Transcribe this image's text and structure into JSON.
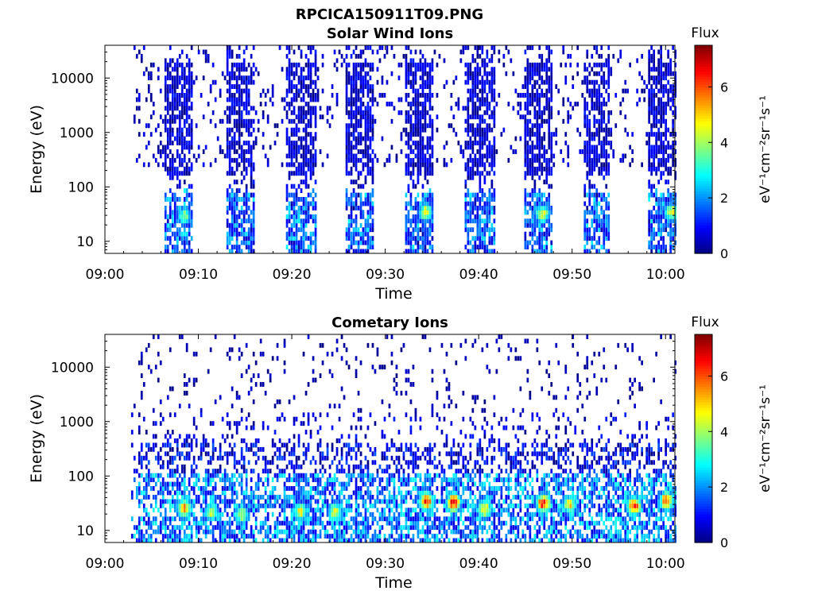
{
  "figure": {
    "title": "RPCICA150911T09.PNG"
  },
  "chart_data": [
    {
      "type": "heatmap",
      "title": "Solar Wind Ions",
      "xlabel": "Time",
      "ylabel": "Energy (eV)",
      "x_ticks": [
        "09:00",
        "09:10",
        "09:20",
        "09:30",
        "09:40",
        "09:50",
        "10:00"
      ],
      "x_range_minutes": [
        0,
        61
      ],
      "y_ticks": [
        "10",
        "100",
        "1000",
        "10000"
      ],
      "y_scale": "log",
      "y_range": [
        6,
        40000
      ],
      "colorbar": {
        "label": "Flux",
        "unit": "eV⁻¹cm⁻²sr⁻¹s⁻¹",
        "ticks": [
          "0",
          "2",
          "4",
          "6"
        ],
        "range": [
          0,
          7.5
        ]
      },
      "bursts_minutes": [
        [
          6.3,
          9.4
        ],
        [
          12.8,
          15.9
        ],
        [
          19.2,
          22.6
        ],
        [
          25.5,
          28.8
        ],
        [
          32.0,
          35.0
        ],
        [
          38.5,
          41.6
        ],
        [
          44.8,
          47.8
        ],
        [
          51.0,
          54.0
        ],
        [
          58.0,
          61.0
        ]
      ],
      "peaks": [
        {
          "t": 8.4,
          "energy": 30,
          "flux": 4.0
        },
        {
          "t": 34.2,
          "energy": 35,
          "flux": 4.8
        },
        {
          "t": 46.7,
          "energy": 32,
          "flux": 5.0
        },
        {
          "t": 60.5,
          "energy": 35,
          "flux": 4.8
        }
      ]
    },
    {
      "type": "heatmap",
      "title": "Cometary Ions",
      "xlabel": "Time",
      "ylabel": "Energy (eV)",
      "x_ticks": [
        "09:00",
        "09:10",
        "09:20",
        "09:30",
        "09:40",
        "09:50",
        "10:00"
      ],
      "x_range_minutes": [
        0,
        61
      ],
      "y_ticks": [
        "10",
        "100",
        "1000",
        "10000"
      ],
      "y_scale": "log",
      "y_range": [
        6,
        40000
      ],
      "colorbar": {
        "label": "Flux",
        "unit": "eV⁻¹cm⁻²sr⁻¹s⁻¹",
        "ticks": [
          "0",
          "2",
          "4",
          "6"
        ],
        "range": [
          0,
          7.5
        ]
      },
      "bursts_minutes": [
        [
          3.5,
          61.0
        ]
      ],
      "peaks": [
        {
          "t": 8.4,
          "energy": 25,
          "flux": 6.0
        },
        {
          "t": 11.3,
          "energy": 22,
          "flux": 4.5
        },
        {
          "t": 14.5,
          "energy": 20,
          "flux": 4.5
        },
        {
          "t": 20.8,
          "energy": 22,
          "flux": 5.0
        },
        {
          "t": 24.5,
          "energy": 22,
          "flux": 5.0
        },
        {
          "t": 34.3,
          "energy": 35,
          "flux": 6.8
        },
        {
          "t": 37.2,
          "energy": 33,
          "flux": 7.0
        },
        {
          "t": 40.5,
          "energy": 25,
          "flux": 5.5
        },
        {
          "t": 46.8,
          "energy": 32,
          "flux": 6.8
        },
        {
          "t": 49.6,
          "energy": 30,
          "flux": 5.0
        },
        {
          "t": 56.5,
          "energy": 28,
          "flux": 6.8
        },
        {
          "t": 60.0,
          "energy": 35,
          "flux": 6.5
        }
      ]
    }
  ]
}
